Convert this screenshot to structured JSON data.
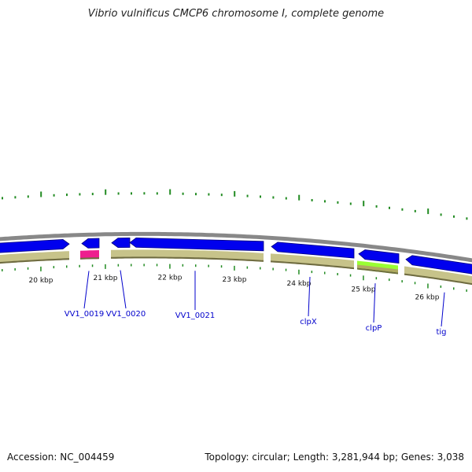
{
  "title": "Vibrio vulnificus CMCP6 chromosome I, complete genome",
  "footer": {
    "accession": "Accession: NC_004459",
    "summary": "Topology: circular; Length: 3,281,944 bp; Genes: 3,038"
  },
  "ticks": {
    "labels": [
      "20 kbp",
      "21 kbp",
      "22 kbp",
      "23 kbp",
      "24 kbp",
      "25 kbp",
      "26 kbp"
    ]
  },
  "genes": [
    {
      "label": "VV1_0019"
    },
    {
      "label": "VV1_0020"
    },
    {
      "label": "VV1_0021"
    },
    {
      "label": "clpX"
    },
    {
      "label": "clpP"
    },
    {
      "label": "tig"
    }
  ],
  "colors": {
    "cds": "#0000ee",
    "rna": "#ee1e8e",
    "cog": "#c7c38a",
    "cog_highlight": "#9aff33",
    "backbone": "#888888",
    "gc": "#228b22",
    "label": "#0000cc"
  }
}
